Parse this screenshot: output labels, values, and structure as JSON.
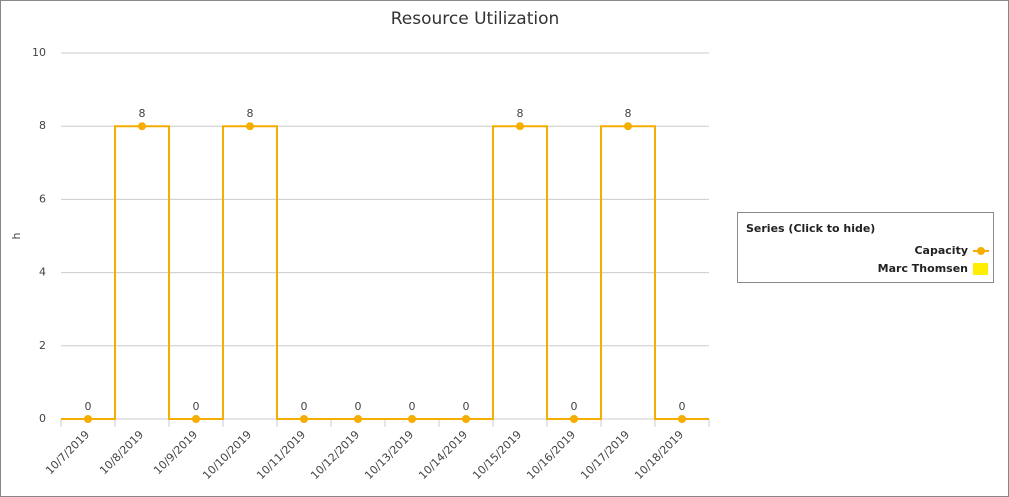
{
  "chart_data": {
    "type": "step-line",
    "title": "Resource Utilization",
    "y_label": "h",
    "categories": [
      "10/7/2019",
      "10/8/2019",
      "10/9/2019",
      "10/10/2019",
      "10/11/2019",
      "10/12/2019",
      "10/13/2019",
      "10/14/2019",
      "10/15/2019",
      "10/16/2019",
      "10/17/2019",
      "10/18/2019"
    ],
    "series": [
      {
        "name": "Capacity",
        "color": "#f5ae00",
        "values": [
          0,
          8,
          0,
          8,
          0,
          0,
          0,
          0,
          8,
          0,
          8,
          0
        ]
      },
      {
        "name": "Marc Thomsen",
        "color": "#ffee00",
        "values": [
          null,
          null,
          null,
          null,
          null,
          null,
          null,
          null,
          null,
          null,
          null,
          null
        ]
      }
    ],
    "ylim": [
      0,
      10
    ],
    "yticks": [
      0,
      2,
      4,
      6,
      8,
      10
    ],
    "grid": true,
    "legend_title": "Series (Click to hide)",
    "legend": "right"
  }
}
